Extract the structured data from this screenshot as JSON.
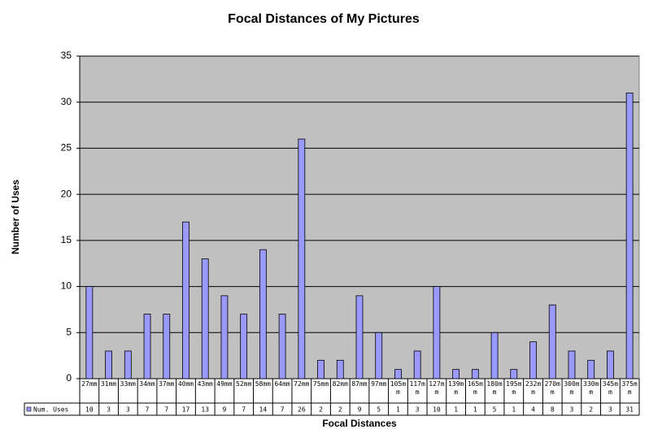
{
  "chart_data": {
    "type": "bar",
    "title": "Focal Distances of My Pictures",
    "x_label": "Focal Distances",
    "y_label": "Number of Uses",
    "categories": [
      "27mm",
      "31mm",
      "33mm",
      "34mm",
      "37mm",
      "40mm",
      "43mm",
      "49mm",
      "52mm",
      "58mm",
      "64mm",
      "72mm",
      "75mm",
      "82mm",
      "87mm",
      "97mm",
      "105mm",
      "117mm",
      "127mm",
      "139mm",
      "165mm",
      "180mm",
      "195mm",
      "232mm",
      "270mm",
      "300mm",
      "330mm",
      "345mm",
      "375mm"
    ],
    "series": [
      {
        "name": "Num. Uses",
        "color": "#9999ff",
        "values": [
          10,
          3,
          3,
          7,
          7,
          17,
          13,
          9,
          7,
          14,
          7,
          26,
          2,
          2,
          9,
          5,
          1,
          3,
          10,
          1,
          1,
          5,
          1,
          4,
          8,
          3,
          2,
          3,
          31
        ]
      }
    ],
    "ylim": [
      0,
      35
    ],
    "yticks": [
      0,
      5,
      10,
      15,
      20,
      25,
      30,
      35
    ],
    "grid": true
  }
}
